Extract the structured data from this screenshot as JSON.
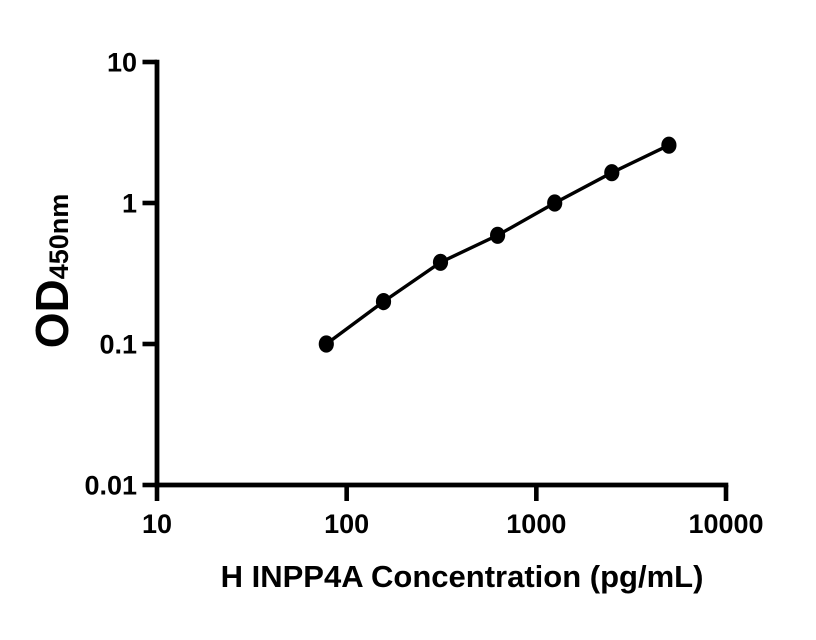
{
  "figure": {
    "background": "#ffffff",
    "foreground": "#000000"
  },
  "chart_data": {
    "type": "scatter",
    "title": "",
    "xlabel": "H INPP4A Concentration (pg/mL)",
    "ylabel_main": "OD",
    "ylabel_sub": "450nm",
    "x_scale": "log",
    "y_scale": "log",
    "xlim": [
      10,
      10000
    ],
    "ylim": [
      0.01,
      10
    ],
    "x_ticks": [
      "10",
      "100",
      "1000",
      "10000"
    ],
    "y_ticks": [
      "10",
      "1",
      "0.1",
      "0.01"
    ],
    "grid": false,
    "legend": "none",
    "series": [
      {
        "marker": "filled-circle",
        "color": "#000000",
        "x": [
          78.1,
          156.3,
          312.5,
          625,
          1250,
          2500,
          5000
        ],
        "y": [
          0.1,
          0.2,
          0.38,
          0.59,
          1.0,
          1.64,
          2.57
        ]
      }
    ]
  }
}
